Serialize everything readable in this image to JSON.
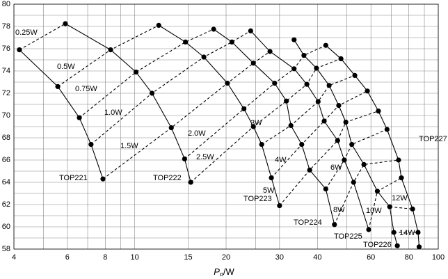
{
  "chart_data": {
    "type": "line",
    "xlabel": {
      "main": "P",
      "sub": "o",
      "unit": "/W"
    },
    "xscale": "log",
    "xlim": [
      4,
      100
    ],
    "xticks": [
      4,
      6,
      8,
      10,
      15,
      20,
      30,
      40,
      60,
      80,
      100
    ],
    "xminor": [
      5,
      7,
      9,
      25,
      50,
      70,
      90
    ],
    "ylim": [
      58,
      80
    ],
    "yticks": [
      58,
      60,
      62,
      64,
      66,
      68,
      70,
      72,
      74,
      76,
      78,
      80
    ],
    "yminor": [
      59,
      61,
      63,
      65,
      67,
      69,
      71,
      73,
      75,
      77,
      79
    ],
    "grid": true,
    "series": [
      {
        "name": "TOP221",
        "color": "#000000",
        "x": [
          4.17,
          5.58,
          6.57,
          7.18,
          7.86
        ],
        "values": [
          75.9,
          72.6,
          69.8,
          67.4,
          64.3
        ]
      },
      {
        "name": "TOP222",
        "color": "#000000",
        "x": [
          5.91,
          8.33,
          10.1,
          11.4,
          13.2,
          14.6,
          15.3
        ],
        "values": [
          78.25,
          75.9,
          73.9,
          72.0,
          68.9,
          66.1,
          64.0
        ]
      },
      {
        "name": "TOP223",
        "color": "#000000",
        "x": [
          12.0,
          14.7,
          16.9,
          20.2,
          22.9,
          24.6,
          26.2,
          28.2,
          30.0
        ],
        "values": [
          78.1,
          76.6,
          75.25,
          72.9,
          70.6,
          69.0,
          67.4,
          64.4,
          61.9
        ]
      },
      {
        "name": "TOP224",
        "color": "#000000",
        "x": [
          18.2,
          20.9,
          24.6,
          28.9,
          31.6,
          32.7,
          35.5,
          37.7,
          42.6,
          45.5
        ],
        "values": [
          77.75,
          76.6,
          74.7,
          72.9,
          71.3,
          69.1,
          67.4,
          65.1,
          63.4,
          60.2
        ]
      },
      {
        "name": "TOP225",
        "color": "#000000",
        "x": [
          24.1,
          27.9,
          33.5,
          36.9,
          40.2,
          42.1,
          46.6,
          49.0,
          52.6,
          59.0
        ],
        "values": [
          77.6,
          75.75,
          74.2,
          72.8,
          71.25,
          69.5,
          67.75,
          66.0,
          64.0,
          59.75
        ]
      },
      {
        "name": "TOP226",
        "color": "#000000",
        "x": [
          33.5,
          36.1,
          39.7,
          43.7,
          47.0,
          49.6,
          51.9,
          56.9,
          63.0,
          69.2,
          71.4,
          73.3
        ],
        "values": [
          76.8,
          75.4,
          74.25,
          72.7,
          70.9,
          69.4,
          67.4,
          65.6,
          63.2,
          61.8,
          59.5,
          58.3
        ]
      },
      {
        "name": "TOP227",
        "color": "#000000",
        "x": [
          42.6,
          47.8,
          53.1,
          58.4,
          63.5,
          67.8,
          74.0,
          75.6,
          82.3,
          85.8,
          86.5
        ],
        "values": [
          76.3,
          75.1,
          73.6,
          72.2,
          70.4,
          68.75,
          66.0,
          64.4,
          61.6,
          59.5,
          58.2
        ]
      }
    ],
    "dissipation": [
      {
        "name": "0.25W",
        "x": [
          4.17,
          5.91
        ],
        "values": [
          75.9,
          78.25
        ]
      },
      {
        "name": "0.5W",
        "x": [
          5.58,
          8.33,
          12.0
        ],
        "values": [
          72.6,
          75.9,
          78.1
        ]
      },
      {
        "name": "0.75W",
        "x": [
          6.57,
          10.1,
          14.7,
          18.2
        ],
        "values": [
          69.8,
          73.9,
          76.6,
          77.75
        ]
      },
      {
        "name": "1.0W",
        "x": [
          7.18,
          11.4,
          16.9,
          20.9,
          24.1
        ],
        "values": [
          67.4,
          72.0,
          75.25,
          76.6,
          77.6
        ]
      },
      {
        "name": "1.5W",
        "x": [
          7.86,
          13.2,
          20.2,
          24.6,
          27.9
        ],
        "values": [
          64.3,
          68.9,
          72.9,
          74.7,
          75.75
        ]
      },
      {
        "name": "2.0W",
        "x": [
          14.6,
          22.9,
          28.9,
          33.5,
          36.1,
          42.6
        ],
        "values": [
          66.1,
          70.6,
          72.9,
          74.2,
          75.4,
          76.3
        ]
      },
      {
        "name": "2.5W",
        "x": [
          15.3,
          24.6,
          31.6,
          36.9,
          39.7,
          47.8
        ],
        "values": [
          64.0,
          69.0,
          71.3,
          72.8,
          74.25,
          75.1
        ]
      },
      {
        "name": "3W",
        "x": [
          26.2,
          32.7,
          40.2,
          43.7,
          53.1
        ],
        "values": [
          67.4,
          69.1,
          71.25,
          72.7,
          73.6
        ]
      },
      {
        "name": "4W",
        "x": [
          28.2,
          35.5,
          42.1,
          47.0,
          58.4
        ],
        "values": [
          64.4,
          67.4,
          69.5,
          70.9,
          72.2
        ]
      },
      {
        "name": "5W",
        "x": [
          30.0,
          37.7,
          46.6,
          49.6,
          63.5
        ],
        "values": [
          61.9,
          65.1,
          67.75,
          69.4,
          70.4
        ]
      },
      {
        "name": "6W",
        "x": [
          42.6,
          49.0,
          51.9,
          67.8
        ],
        "values": [
          63.4,
          66.0,
          67.4,
          68.75
        ]
      },
      {
        "name": "8W",
        "x": [
          45.5,
          52.6,
          56.9,
          74.0
        ],
        "values": [
          60.2,
          64.0,
          65.6,
          66.0
        ]
      },
      {
        "name": "10W",
        "x": [
          59.0,
          63.0,
          75.6
        ],
        "values": [
          59.75,
          63.2,
          64.4
        ]
      },
      {
        "name": "12W",
        "x": [
          69.2,
          82.3
        ],
        "values": [
          61.8,
          61.6
        ]
      },
      {
        "name": "14W",
        "x": [
          71.4,
          85.8
        ],
        "values": [
          59.5,
          59.5
        ]
      }
    ]
  }
}
